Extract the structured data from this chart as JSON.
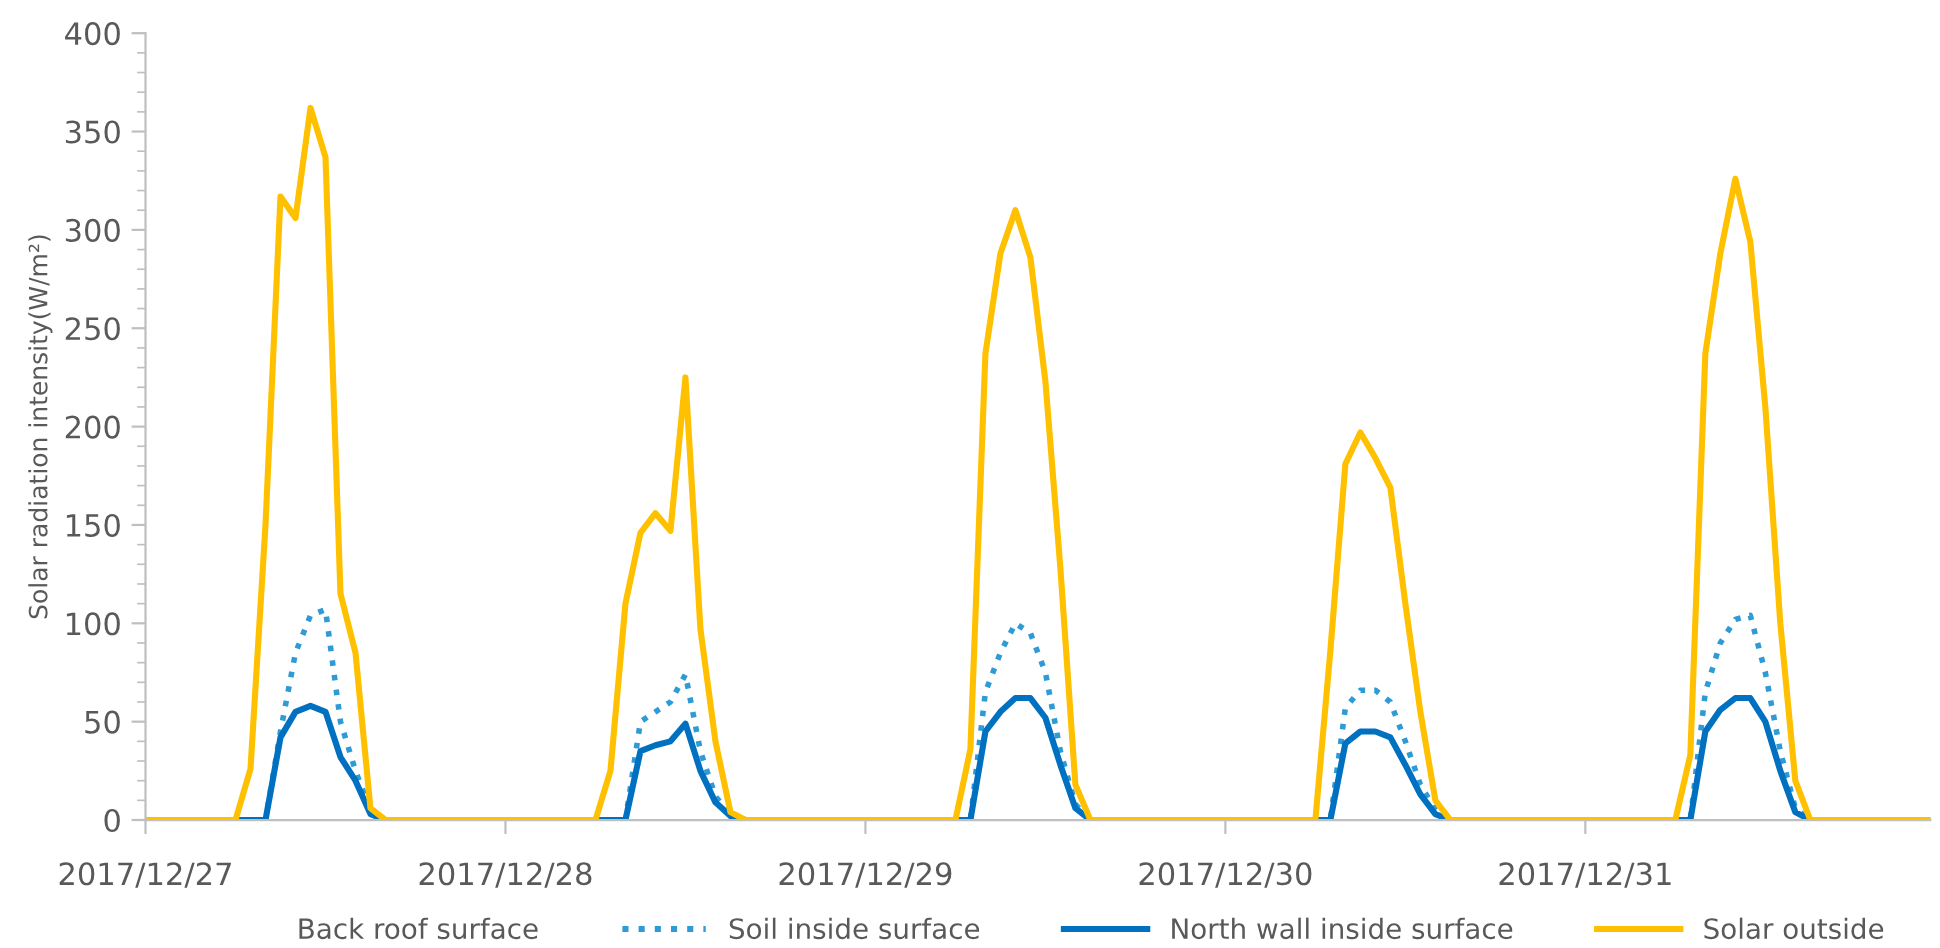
{
  "chart_data": {
    "type": "line",
    "ylabel": "Solar radiation intensity(W/m²)",
    "x": [
      "2017-12-27T00:00",
      "2017-12-27T06:00",
      "2017-12-27T07:00",
      "2017-12-27T08:00",
      "2017-12-27T09:00",
      "2017-12-27T10:00",
      "2017-12-27T11:00",
      "2017-12-27T12:00",
      "2017-12-27T13:00",
      "2017-12-27T14:00",
      "2017-12-27T15:00",
      "2017-12-27T16:00",
      "2017-12-28T06:00",
      "2017-12-28T07:00",
      "2017-12-28T08:00",
      "2017-12-28T09:00",
      "2017-12-28T10:00",
      "2017-12-28T11:00",
      "2017-12-28T12:00",
      "2017-12-28T13:00",
      "2017-12-28T14:00",
      "2017-12-28T15:00",
      "2017-12-28T16:00",
      "2017-12-29T06:00",
      "2017-12-29T07:00",
      "2017-12-29T08:00",
      "2017-12-29T09:00",
      "2017-12-29T10:00",
      "2017-12-29T11:00",
      "2017-12-29T12:00",
      "2017-12-29T13:00",
      "2017-12-29T14:00",
      "2017-12-29T15:00",
      "2017-12-29T16:00",
      "2017-12-30T06:00",
      "2017-12-30T07:00",
      "2017-12-30T08:00",
      "2017-12-30T09:00",
      "2017-12-30T10:00",
      "2017-12-30T11:00",
      "2017-12-30T12:00",
      "2017-12-30T13:00",
      "2017-12-30T14:00",
      "2017-12-30T15:00",
      "2017-12-30T16:00",
      "2017-12-31T06:00",
      "2017-12-31T07:00",
      "2017-12-31T08:00",
      "2017-12-31T09:00",
      "2017-12-31T10:00",
      "2017-12-31T11:00",
      "2017-12-31T12:00",
      "2017-12-31T13:00",
      "2017-12-31T14:00",
      "2017-12-31T15:00",
      "2017-12-31T16:00",
      "2017-12-31T23:00"
    ],
    "series": [
      {
        "name": "Back roof surface",
        "values": [
          null,
          null,
          null,
          null,
          null,
          null,
          null,
          null,
          null,
          null,
          null,
          null,
          null,
          null,
          null,
          null,
          null,
          null,
          null,
          null,
          null,
          null,
          null,
          null,
          null,
          null,
          null,
          null,
          null,
          null,
          null,
          null,
          null,
          null,
          null,
          null,
          null,
          null,
          null,
          null,
          null,
          null,
          null,
          null,
          null,
          null,
          null,
          null,
          null,
          null,
          null,
          null,
          null,
          null,
          null,
          null,
          null
        ]
      },
      {
        "name": "Soil inside surface",
        "color": "#2e9bd6",
        "line_style": "dotted",
        "values": [
          0,
          0,
          0,
          0,
          45,
          85,
          104,
          107,
          50,
          25,
          5,
          0,
          0,
          0,
          0,
          50,
          55,
          60,
          74,
          35,
          12,
          3,
          0,
          0,
          0,
          65,
          85,
          100,
          95,
          75,
          35,
          8,
          0,
          0,
          0,
          0,
          57,
          66,
          66,
          60,
          40,
          18,
          5,
          0,
          0,
          0,
          0,
          65,
          90,
          102,
          104,
          75,
          35,
          6,
          0,
          0,
          0
        ]
      },
      {
        "name": "North wall inside surface",
        "color": "#0070c0",
        "line_style": "solid",
        "values": [
          0,
          0,
          0,
          0,
          42,
          55,
          58,
          55,
          32,
          20,
          3,
          0,
          0,
          0,
          0,
          35,
          38,
          40,
          49,
          25,
          9,
          2,
          0,
          0,
          0,
          45,
          55,
          62,
          62,
          52,
          28,
          6,
          0,
          0,
          0,
          0,
          39,
          45,
          45,
          42,
          28,
          13,
          3,
          0,
          0,
          0,
          0,
          45,
          56,
          62,
          62,
          50,
          25,
          4,
          0,
          0,
          0
        ]
      },
      {
        "name": "Solar outside",
        "color": "#ffc000",
        "line_style": "solid",
        "values": [
          0,
          0,
          26,
          150,
          317,
          306,
          362,
          337,
          115,
          85,
          6,
          0,
          0,
          25,
          110,
          146,
          156,
          147,
          225,
          97,
          40,
          4,
          0,
          0,
          36,
          237,
          288,
          310,
          286,
          223,
          128,
          18,
          0,
          0,
          0,
          86,
          181,
          197,
          184,
          169,
          110,
          55,
          10,
          0,
          0,
          0,
          33,
          237,
          288,
          326,
          294,
          210,
          100,
          20,
          0,
          0,
          0
        ]
      }
    ],
    "xlim": [
      "2017-12-27T00:00",
      "2017-12-31T23:00"
    ],
    "xticks": [
      {
        "value": "2017-12-27",
        "label": "2017/12/27"
      },
      {
        "value": "2017-12-28",
        "label": "2017/12/28"
      },
      {
        "value": "2017-12-29",
        "label": "2017/12/29"
      },
      {
        "value": "2017-12-30",
        "label": "2017/12/30"
      },
      {
        "value": "2017-12-31",
        "label": "2017/12/31"
      }
    ],
    "ylim": [
      0,
      400
    ],
    "yticks": [
      0,
      50,
      100,
      150,
      200,
      250,
      300,
      350,
      400
    ],
    "grid": false,
    "legend": "bottom",
    "marker": "none"
  }
}
